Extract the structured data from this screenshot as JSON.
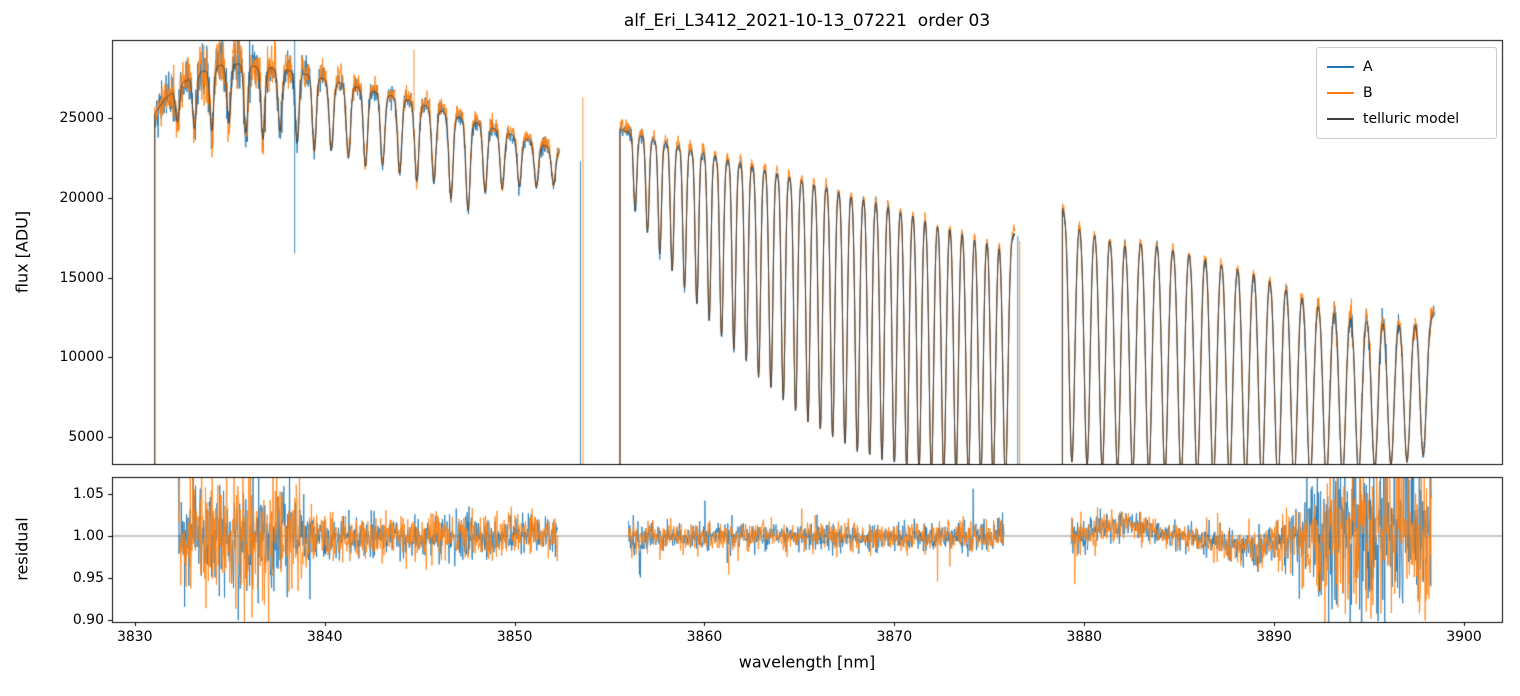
{
  "chart_data": {
    "type": "line",
    "title": "alf_Eri_L3412_2021-10-13_07221  order 03",
    "xlabel": "wavelength [nm]",
    "xlim": [
      3828.8,
      3902.0
    ],
    "xticks": [
      3830,
      3840,
      3850,
      3860,
      3870,
      3880,
      3890,
      3900
    ],
    "xtick_labels": [
      "3830",
      "3840",
      "3850",
      "3860",
      "3870",
      "3880",
      "3890",
      "3900"
    ],
    "colors": {
      "A": "#1f77b4",
      "B": "#ff7f0e",
      "model": "#3d3d3d",
      "refline": "#8a8a8a",
      "axis": "#000000"
    },
    "legend": [
      {
        "series": "A",
        "label": "A"
      },
      {
        "series": "B",
        "label": "B"
      },
      {
        "series": "model",
        "label": "telluric model"
      }
    ],
    "panels": [
      {
        "name": "flux",
        "ylabel": "flux [ADU]",
        "ylim": [
          3300,
          29900
        ],
        "yticks": [
          5000,
          10000,
          15000,
          20000,
          25000
        ],
        "ytick_labels": [
          "5000",
          "10000",
          "15000",
          "20000",
          "25000"
        ]
      },
      {
        "name": "residual",
        "ylabel": "residual",
        "ylim": [
          0.898,
          1.07
        ],
        "yticks": [
          0.9,
          0.95,
          1.0,
          1.05
        ],
        "ytick_labels": [
          "0.90",
          "0.95",
          "1.00",
          "1.05"
        ],
        "refline": 1.0
      }
    ],
    "segments": [
      [
        3831.05,
        3852.35
      ],
      [
        3855.55,
        3876.35
      ],
      [
        3878.85,
        3898.45
      ]
    ],
    "residual_segments": [
      [
        3832.3,
        3852.3
      ],
      [
        3856.0,
        3875.8
      ],
      [
        3879.3,
        3898.3
      ]
    ],
    "continuum_anchors": [
      [
        3831.0,
        25200
      ],
      [
        3831.6,
        26200
      ],
      [
        3832.5,
        27200
      ],
      [
        3833.5,
        27900
      ],
      [
        3834.5,
        28300
      ],
      [
        3835.5,
        28400
      ],
      [
        3836.5,
        28200
      ],
      [
        3837.5,
        28100
      ],
      [
        3838.5,
        27900
      ],
      [
        3839.5,
        27600
      ],
      [
        3840.5,
        27300
      ],
      [
        3841.5,
        27000
      ],
      [
        3842.5,
        26700
      ],
      [
        3843.5,
        26400
      ],
      [
        3844.5,
        26100
      ],
      [
        3845.5,
        25700
      ],
      [
        3846.5,
        25300
      ],
      [
        3847.5,
        24900
      ],
      [
        3848.5,
        24500
      ],
      [
        3849.5,
        24100
      ],
      [
        3850.5,
        23700
      ],
      [
        3851.5,
        23300
      ],
      [
        3852.35,
        23000
      ],
      [
        3855.55,
        24300
      ],
      [
        3856.5,
        23900
      ],
      [
        3858.0,
        23400
      ],
      [
        3860.0,
        22800
      ],
      [
        3862.0,
        22200
      ],
      [
        3864.0,
        21600
      ],
      [
        3866.0,
        21000
      ],
      [
        3868.0,
        20400
      ],
      [
        3870.0,
        19800
      ],
      [
        3872.0,
        19100
      ],
      [
        3874.0,
        18500
      ],
      [
        3875.5,
        18000
      ],
      [
        3876.35,
        17700
      ],
      [
        3878.85,
        19400
      ],
      [
        3879.5,
        19000
      ],
      [
        3880.5,
        18600
      ],
      [
        3882.0,
        18200
      ],
      [
        3884.0,
        17800
      ],
      [
        3886.0,
        17400
      ],
      [
        3887.5,
        17000
      ],
      [
        3889.0,
        16400
      ],
      [
        3890.0,
        15800
      ],
      [
        3891.0,
        15100
      ],
      [
        3892.0,
        14400
      ],
      [
        3893.0,
        13800
      ],
      [
        3894.0,
        13400
      ],
      [
        3895.0,
        13100
      ],
      [
        3896.0,
        12900
      ],
      [
        3897.0,
        12800
      ],
      [
        3898.45,
        12800
      ]
    ],
    "telluric_lines": [
      [
        3832.25,
        0.08,
        0.1
      ],
      [
        3833.15,
        0.12,
        0.1
      ],
      [
        3834.05,
        0.14,
        0.1
      ],
      [
        3834.95,
        0.13,
        0.1
      ],
      [
        3835.85,
        0.15,
        0.1
      ],
      [
        3836.75,
        0.16,
        0.1
      ],
      [
        3837.65,
        0.14,
        0.1
      ],
      [
        3838.55,
        0.16,
        0.1
      ],
      [
        3839.45,
        0.17,
        0.1
      ],
      [
        3840.35,
        0.16,
        0.11
      ],
      [
        3841.25,
        0.17,
        0.11
      ],
      [
        3842.15,
        0.18,
        0.11
      ],
      [
        3843.05,
        0.17,
        0.11
      ],
      [
        3843.95,
        0.18,
        0.11
      ],
      [
        3844.85,
        0.19,
        0.11
      ],
      [
        3845.75,
        0.18,
        0.11
      ],
      [
        3846.65,
        0.21,
        0.11
      ],
      [
        3847.55,
        0.23,
        0.11
      ],
      [
        3848.45,
        0.17,
        0.11
      ],
      [
        3849.35,
        0.15,
        0.11
      ],
      [
        3850.25,
        0.13,
        0.11
      ],
      [
        3851.15,
        0.12,
        0.11
      ],
      [
        3852.05,
        0.1,
        0.11
      ],
      [
        3856.35,
        0.2,
        0.085
      ],
      [
        3857.0,
        0.25,
        0.085
      ],
      [
        3857.65,
        0.3,
        0.085
      ],
      [
        3858.3,
        0.34,
        0.09
      ],
      [
        3858.95,
        0.38,
        0.09
      ],
      [
        3859.6,
        0.42,
        0.09
      ],
      [
        3860.25,
        0.46,
        0.09
      ],
      [
        3860.9,
        0.5,
        0.095
      ],
      [
        3861.55,
        0.53,
        0.095
      ],
      [
        3862.2,
        0.56,
        0.095
      ],
      [
        3862.85,
        0.6,
        0.1
      ],
      [
        3863.5,
        0.63,
        0.1
      ],
      [
        3864.15,
        0.66,
        0.1
      ],
      [
        3864.8,
        0.69,
        0.1
      ],
      [
        3865.45,
        0.72,
        0.105
      ],
      [
        3866.1,
        0.74,
        0.105
      ],
      [
        3866.75,
        0.76,
        0.105
      ],
      [
        3867.4,
        0.78,
        0.11
      ],
      [
        3868.05,
        0.8,
        0.11
      ],
      [
        3868.7,
        0.81,
        0.11
      ],
      [
        3869.35,
        0.82,
        0.11
      ],
      [
        3870.0,
        0.83,
        0.115
      ],
      [
        3870.65,
        0.84,
        0.115
      ],
      [
        3871.3,
        0.85,
        0.115
      ],
      [
        3871.95,
        0.85,
        0.12
      ],
      [
        3872.6,
        0.86,
        0.12
      ],
      [
        3873.25,
        0.86,
        0.12
      ],
      [
        3873.9,
        0.86,
        0.125
      ],
      [
        3874.55,
        0.87,
        0.125
      ],
      [
        3875.2,
        0.87,
        0.125
      ],
      [
        3875.85,
        0.87,
        0.13
      ],
      [
        3879.35,
        0.82,
        0.15
      ],
      [
        3880.15,
        0.83,
        0.15
      ],
      [
        3880.95,
        0.84,
        0.155
      ],
      [
        3881.75,
        0.84,
        0.155
      ],
      [
        3882.55,
        0.85,
        0.16
      ],
      [
        3883.4,
        0.85,
        0.16
      ],
      [
        3884.25,
        0.85,
        0.16
      ],
      [
        3885.1,
        0.86,
        0.165
      ],
      [
        3885.95,
        0.86,
        0.165
      ],
      [
        3886.8,
        0.86,
        0.17
      ],
      [
        3887.65,
        0.86,
        0.17
      ],
      [
        3888.5,
        0.86,
        0.17
      ],
      [
        3889.35,
        0.87,
        0.17
      ],
      [
        3890.2,
        0.86,
        0.17
      ],
      [
        3891.05,
        0.85,
        0.17
      ],
      [
        3891.9,
        0.84,
        0.17
      ],
      [
        3892.75,
        0.83,
        0.17
      ],
      [
        3893.6,
        0.81,
        0.17
      ],
      [
        3894.45,
        0.79,
        0.17
      ],
      [
        3895.3,
        0.77,
        0.17
      ],
      [
        3896.15,
        0.75,
        0.17
      ],
      [
        3897.0,
        0.73,
        0.17
      ],
      [
        3897.85,
        0.7,
        0.17
      ]
    ],
    "flux_noise_sigma": [
      [
        3831.1,
        0.02
      ],
      [
        3832.0,
        0.03
      ],
      [
        3834.0,
        0.032
      ],
      [
        3836.0,
        0.03
      ],
      [
        3838.0,
        0.025
      ],
      [
        3839.0,
        0.015
      ],
      [
        3842.0,
        0.012
      ],
      [
        3846.0,
        0.012
      ],
      [
        3850.0,
        0.011
      ],
      [
        3852.3,
        0.011
      ],
      [
        3855.6,
        0.012
      ],
      [
        3857.0,
        0.009
      ],
      [
        3865.0,
        0.008
      ],
      [
        3872.0,
        0.009
      ],
      [
        3876.3,
        0.01
      ],
      [
        3878.9,
        0.012
      ],
      [
        3880.0,
        0.009
      ],
      [
        3885.0,
        0.009
      ],
      [
        3888.0,
        0.01
      ],
      [
        3890.0,
        0.012
      ],
      [
        3891.5,
        0.02
      ],
      [
        3893.0,
        0.03
      ],
      [
        3895.0,
        0.035
      ],
      [
        3897.0,
        0.035
      ],
      [
        3898.4,
        0.03
      ]
    ],
    "bias_A": [
      [
        3831.0,
        0.0
      ],
      [
        3885.0,
        0.0
      ],
      [
        3887.0,
        -0.006
      ],
      [
        3889.0,
        -0.01
      ],
      [
        3891.0,
        -0.01
      ],
      [
        3893.0,
        -0.005
      ],
      [
        3895.0,
        0.0
      ],
      [
        3898.4,
        0.0
      ]
    ],
    "bias_B": [
      [
        3831.0,
        0.002
      ],
      [
        3836.0,
        0.006
      ],
      [
        3842.0,
        0.008
      ],
      [
        3852.0,
        0.008
      ],
      [
        3856.0,
        0.01
      ],
      [
        3866.0,
        0.012
      ],
      [
        3876.0,
        0.013
      ],
      [
        3879.0,
        0.012
      ],
      [
        3886.0,
        0.013
      ],
      [
        3891.0,
        0.015
      ],
      [
        3894.0,
        0.018
      ],
      [
        3898.4,
        0.018
      ]
    ],
    "residual_mean": [
      [
        3832.0,
        1.0
      ],
      [
        3840.0,
        0.999
      ],
      [
        3850.0,
        1.0
      ],
      [
        3856.0,
        1.0
      ],
      [
        3860.0,
        0.999
      ],
      [
        3865.0,
        1.0
      ],
      [
        3870.0,
        0.999
      ],
      [
        3875.0,
        1.0
      ],
      [
        3879.3,
        0.998
      ],
      [
        3880.5,
        1.006
      ],
      [
        3881.5,
        1.012
      ],
      [
        3882.3,
        1.016
      ],
      [
        3883.0,
        1.012
      ],
      [
        3884.0,
        1.004
      ],
      [
        3885.0,
        0.999
      ],
      [
        3886.0,
        0.996
      ],
      [
        3887.0,
        0.992
      ],
      [
        3888.0,
        0.988
      ],
      [
        3888.8,
        0.986
      ],
      [
        3889.6,
        0.99
      ],
      [
        3890.4,
        0.996
      ],
      [
        3891.2,
        1.0
      ],
      [
        3893.0,
        1.0
      ],
      [
        3898.3,
        1.0
      ]
    ],
    "residual_sigma_A": [
      [
        3832.3,
        0.025
      ],
      [
        3833.0,
        0.03
      ],
      [
        3835.0,
        0.032
      ],
      [
        3837.0,
        0.03
      ],
      [
        3838.5,
        0.022
      ],
      [
        3840.0,
        0.013
      ],
      [
        3843.0,
        0.011
      ],
      [
        3847.0,
        0.012
      ],
      [
        3850.0,
        0.011
      ],
      [
        3852.3,
        0.01
      ],
      [
        3856.0,
        0.011
      ],
      [
        3858.0,
        0.008
      ],
      [
        3864.0,
        0.007
      ],
      [
        3870.0,
        0.008
      ],
      [
        3874.0,
        0.008
      ],
      [
        3875.8,
        0.01
      ],
      [
        3879.3,
        0.01
      ],
      [
        3881.0,
        0.007
      ],
      [
        3884.0,
        0.007
      ],
      [
        3886.0,
        0.008
      ],
      [
        3888.0,
        0.009
      ],
      [
        3890.0,
        0.012
      ],
      [
        3891.0,
        0.02
      ],
      [
        3892.0,
        0.035
      ],
      [
        3893.0,
        0.05
      ],
      [
        3894.5,
        0.055
      ],
      [
        3896.0,
        0.05
      ],
      [
        3897.5,
        0.045
      ],
      [
        3898.3,
        0.04
      ]
    ],
    "residual_sigma_B": [
      [
        3832.3,
        0.032
      ],
      [
        3833.0,
        0.038
      ],
      [
        3835.0,
        0.04
      ],
      [
        3837.0,
        0.038
      ],
      [
        3838.5,
        0.028
      ],
      [
        3840.0,
        0.016
      ],
      [
        3843.0,
        0.013
      ],
      [
        3847.0,
        0.014
      ],
      [
        3850.0,
        0.013
      ],
      [
        3852.3,
        0.012
      ],
      [
        3856.0,
        0.012
      ],
      [
        3858.0,
        0.009
      ],
      [
        3864.0,
        0.008
      ],
      [
        3870.0,
        0.009
      ],
      [
        3874.0,
        0.009
      ],
      [
        3875.8,
        0.011
      ],
      [
        3879.3,
        0.011
      ],
      [
        3881.0,
        0.008
      ],
      [
        3884.0,
        0.008
      ],
      [
        3886.0,
        0.009
      ],
      [
        3888.0,
        0.01
      ],
      [
        3890.0,
        0.013
      ],
      [
        3891.0,
        0.018
      ],
      [
        3892.0,
        0.028
      ],
      [
        3893.0,
        0.04
      ],
      [
        3894.5,
        0.045
      ],
      [
        3896.0,
        0.042
      ],
      [
        3897.5,
        0.04
      ],
      [
        3898.3,
        0.038
      ]
    ],
    "edge_spikes": [
      {
        "series": "A",
        "x": 3838.42,
        "y1": 16500,
        "y2": 29900
      },
      {
        "series": "B",
        "x": 3844.7,
        "y1": 25500,
        "y2": 29300
      },
      {
        "series": "A",
        "x": 3853.47,
        "y1": 3300,
        "y2": 22300
      },
      {
        "series": "B",
        "x": 3853.6,
        "y1": 3300,
        "y2": 26300
      },
      {
        "series": "A",
        "x": 3876.5,
        "y1": 3300,
        "y2": 17600
      },
      {
        "series": "B",
        "x": 3876.6,
        "y1": 3300,
        "y2": 17300
      }
    ]
  }
}
